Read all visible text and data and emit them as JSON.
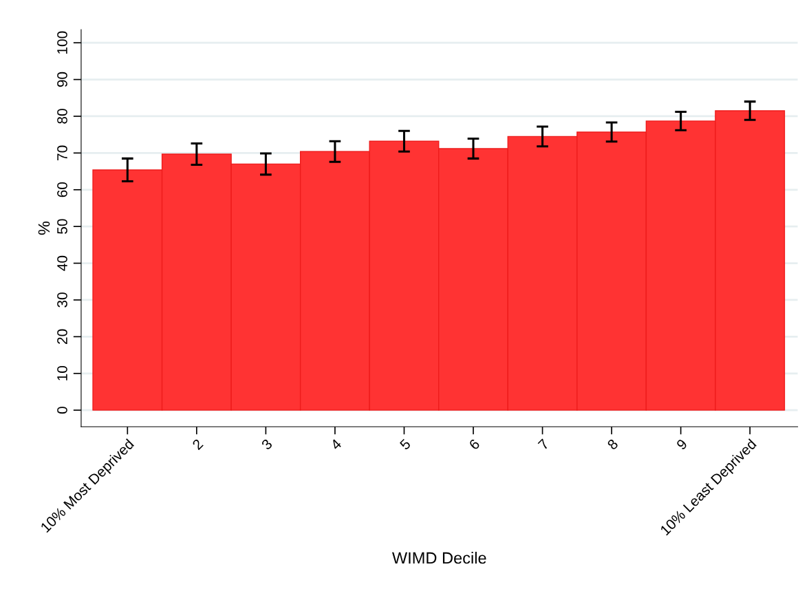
{
  "chart_data": {
    "type": "bar",
    "xlabel": "WIMD Decile",
    "ylabel": "%",
    "categories": [
      "10% Most Deprived",
      "2",
      "3",
      "4",
      "5",
      "6",
      "7",
      "8",
      "9",
      "10% Least Deprived"
    ],
    "values": [
      65.4,
      69.7,
      67.0,
      70.4,
      73.2,
      71.2,
      74.5,
      75.7,
      78.7,
      81.5
    ],
    "errors": [
      3.1,
      2.9,
      2.9,
      2.8,
      2.8,
      2.7,
      2.7,
      2.6,
      2.5,
      2.5
    ],
    "color": "#ff3333",
    "ylim": [
      -4.5,
      103.6
    ],
    "yticks": [
      0,
      10,
      20,
      30,
      40,
      50,
      60,
      70,
      80,
      90,
      100
    ],
    "grid": "y"
  }
}
